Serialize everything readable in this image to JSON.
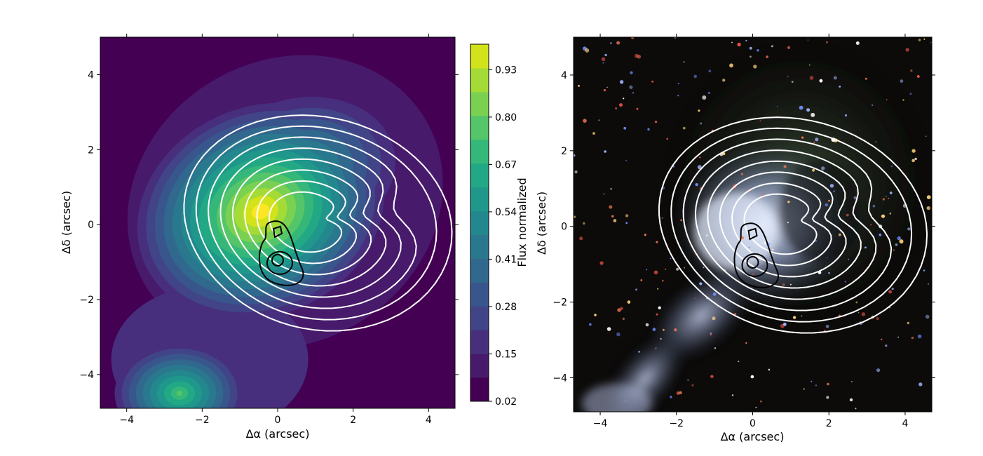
{
  "chart_data": [
    {
      "type": "heatmap",
      "xlabel": "Δα (arcsec)",
      "ylabel": "Δδ (arcsec)",
      "xlim": [
        -4.7,
        4.7
      ],
      "ylim": [
        -4.9,
        5.0
      ],
      "xticks": [
        "−4",
        "−2",
        "0",
        "2",
        "4"
      ],
      "yticks": [
        "−4",
        "−2",
        "0",
        "2",
        "4"
      ],
      "colormap": "viridis",
      "colorbar": {
        "label": "Flux normalized",
        "range": [
          0.02,
          1.0
        ],
        "ticks": [
          "0.02",
          "0.15",
          "0.28",
          "0.41",
          "0.54",
          "0.67",
          "0.80",
          "0.93"
        ],
        "levels": 15
      },
      "sources": [
        {
          "x": -0.45,
          "y": 0.35,
          "peak": 1.0
        },
        {
          "x": -2.6,
          "y": -4.5,
          "peak": 0.68
        },
        {
          "x": 0.7,
          "y": 1.5,
          "peak": 0.5
        }
      ],
      "contour_center": [
        0.0,
        -0.95
      ],
      "white_contour_levels": 8,
      "black_contour_levels": 3,
      "contour_colors": {
        "outer": "#ffffff",
        "inner": "#000000"
      }
    },
    {
      "type": "heatmap",
      "xlabel": "Δα (arcsec)",
      "ylabel": "Δδ (arcsec)",
      "xlim": [
        -4.7,
        4.7
      ],
      "ylim": [
        -4.9,
        5.0
      ],
      "xticks": [
        "−4",
        "−2",
        "0",
        "2",
        "4"
      ],
      "yticks": [
        "−4",
        "−2",
        "0",
        "2",
        "4"
      ],
      "image": "RGB composite",
      "contour_center": [
        0.0,
        -0.95
      ],
      "white_contour_levels": 8,
      "black_contour_levels": 3,
      "contour_colors": {
        "outer": "#ffffff",
        "inner": "#000000"
      }
    }
  ]
}
